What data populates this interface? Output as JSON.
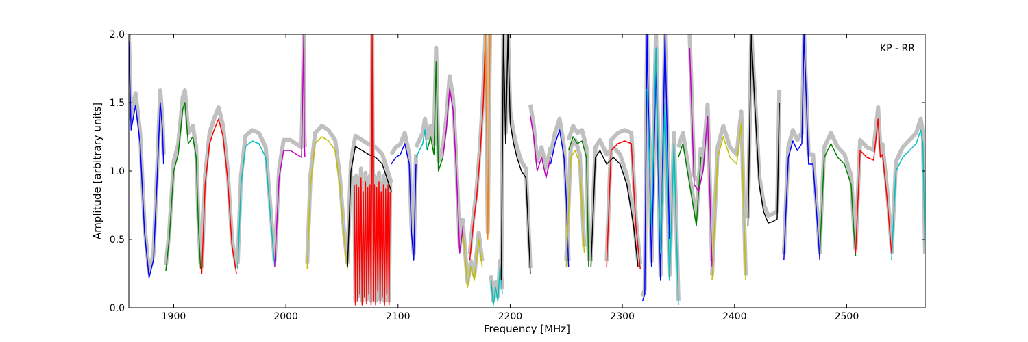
{
  "chart_data": {
    "type": "line",
    "title": "",
    "xlabel": "Frequency [MHz]",
    "ylabel": "Amplitude [arbitrary units]",
    "annotation": "KP - RR",
    "xlim": [
      1860,
      2570
    ],
    "ylim": [
      0.0,
      2.0
    ],
    "x_ticks": [
      1900,
      2000,
      2100,
      2200,
      2300,
      2400,
      2500
    ],
    "y_ticks": [
      0.0,
      0.5,
      1.0,
      1.5,
      2.0
    ],
    "x_tick_labels": [
      "1900",
      "2000",
      "2100",
      "2200",
      "2300",
      "2400",
      "2500"
    ],
    "y_tick_labels": [
      "0.0",
      "0.5",
      "1.0",
      "1.5",
      "2.0"
    ],
    "grid": false,
    "background_color": "#c0c0c0",
    "series": [
      {
        "color": "#0000ff",
        "x": [
          1860,
          1862,
          1866,
          1870,
          1874,
          1878,
          1882,
          1885,
          1888,
          1890,
          1891
        ],
        "y": [
          1.95,
          1.3,
          1.48,
          1.2,
          0.55,
          0.22,
          0.35,
          0.9,
          1.5,
          1.3,
          1.05
        ]
      },
      {
        "color": "#008000",
        "x": [
          1893,
          1896,
          1900,
          1904,
          1908,
          1910,
          1913,
          1917,
          1920,
          1922,
          1924
        ],
        "y": [
          0.27,
          0.5,
          1.0,
          1.12,
          1.45,
          1.5,
          1.2,
          1.25,
          1.1,
          0.6,
          0.28
        ]
      },
      {
        "color": "#ff0000",
        "x": [
          1925,
          1928,
          1932,
          1936,
          1940,
          1944,
          1948,
          1952,
          1956
        ],
        "y": [
          0.25,
          0.9,
          1.2,
          1.3,
          1.38,
          1.25,
          0.95,
          0.45,
          0.25
        ]
      },
      {
        "color": "#00bfbf",
        "x": [
          1957,
          1960,
          1964,
          1970,
          1976,
          1982,
          1986,
          1990
        ],
        "y": [
          0.28,
          0.9,
          1.18,
          1.22,
          1.2,
          1.1,
          0.7,
          0.3
        ]
      },
      {
        "color": "#bf00bf",
        "x": [
          1990,
          1994,
          1998,
          2004,
          2010,
          2014,
          2016,
          2016.5,
          2017
        ],
        "y": [
          0.3,
          0.95,
          1.15,
          1.15,
          1.12,
          1.1,
          2.0,
          1.2,
          1.1
        ]
      },
      {
        "color": "#bfbf00",
        "x": [
          2019,
          2022,
          2026,
          2032,
          2038,
          2044,
          2048,
          2052,
          2055
        ],
        "y": [
          0.28,
          0.9,
          1.2,
          1.25,
          1.22,
          1.15,
          0.9,
          0.5,
          0.28
        ]
      },
      {
        "color": "#000000",
        "x": [
          2055,
          2058,
          2062,
          2068,
          2074,
          2080,
          2086,
          2090,
          2094
        ],
        "y": [
          0.3,
          1.0,
          1.18,
          1.15,
          1.12,
          1.1,
          1.05,
          0.95,
          0.85
        ]
      },
      {
        "color": "#ff0000",
        "x": [
          2061,
          2062,
          2063,
          2064,
          2065,
          2066,
          2067,
          2068,
          2069,
          2070,
          2071,
          2072,
          2073,
          2074,
          2075,
          2076,
          2077,
          2078,
          2079,
          2080,
          2081,
          2082,
          2083,
          2084,
          2085,
          2086,
          2087,
          2088,
          2089,
          2090,
          2091,
          2092,
          2093
        ],
        "y": [
          0.9,
          0.02,
          0.9,
          0.05,
          0.88,
          0.1,
          0.95,
          0.02,
          0.85,
          0.08,
          0.92,
          0.03,
          0.88,
          0.1,
          0.9,
          0.02,
          2.0,
          0.05,
          0.9,
          0.02,
          0.88,
          0.12,
          0.92,
          0.03,
          0.85,
          0.08,
          0.9,
          0.02,
          0.87,
          0.1,
          0.9,
          0.02,
          0.85
        ]
      },
      {
        "color": "#0000ff",
        "x": [
          2094,
          2098,
          2102,
          2106,
          2110,
          2112,
          2114,
          2116
        ],
        "y": [
          1.05,
          1.1,
          1.12,
          1.2,
          1.05,
          0.55,
          0.35,
          1.05
        ]
      },
      {
        "color": "#00bfbf",
        "x": [
          2116,
          2119,
          2122,
          2124,
          2126
        ],
        "y": [
          1.1,
          1.15,
          1.2,
          1.3,
          1.15
        ]
      },
      {
        "color": "#008000",
        "x": [
          2126,
          2129,
          2132,
          2134,
          2136,
          2138,
          2140
        ],
        "y": [
          1.15,
          1.25,
          1.12,
          1.8,
          1.0,
          1.05,
          1.1
        ]
      },
      {
        "color": "#bf00bf",
        "x": [
          2140,
          2143,
          2146,
          2149,
          2152,
          2155,
          2158
        ],
        "y": [
          1.1,
          1.3,
          1.6,
          1.45,
          1.0,
          0.4,
          0.6
        ]
      },
      {
        "color": "#bfbf00",
        "x": [
          2158,
          2162,
          2165,
          2168,
          2172,
          2175
        ],
        "y": [
          0.55,
          0.15,
          0.3,
          0.2,
          0.5,
          0.3
        ]
      },
      {
        "color": "#ff0000",
        "x": [
          2164,
          2167,
          2170,
          2173,
          2176,
          2178
        ],
        "y": [
          0.35,
          0.6,
          0.8,
          1.1,
          1.5,
          2.0
        ]
      },
      {
        "color": "#ff8000",
        "x": [
          2178,
          2180,
          2182
        ],
        "y": [
          2.0,
          0.5,
          2.0
        ]
      },
      {
        "color": "#00bfbf",
        "x": [
          2183,
          2185,
          2187,
          2189,
          2191,
          2193
        ],
        "y": [
          0.2,
          0.02,
          0.15,
          0.05,
          0.3,
          0.1
        ]
      },
      {
        "color": "#000000",
        "x": [
          2192,
          2194,
          2196,
          2198,
          2200,
          2203,
          2206,
          2210,
          2214,
          2218
        ],
        "y": [
          0.2,
          2.0,
          1.2,
          2.0,
          1.35,
          1.2,
          1.1,
          1.0,
          0.95,
          0.25
        ]
      },
      {
        "color": "#bf00bf",
        "x": [
          2218,
          2221,
          2224,
          2228,
          2232,
          2236
        ],
        "y": [
          1.4,
          1.25,
          1.0,
          1.1,
          0.95,
          1.1
        ]
      },
      {
        "color": "#0000ff",
        "x": [
          2236,
          2240,
          2244,
          2248,
          2250,
          2252
        ],
        "y": [
          1.05,
          1.2,
          1.3,
          1.1,
          0.8,
          0.3
        ]
      },
      {
        "color": "#008000",
        "x": [
          2252,
          2256,
          2260,
          2264,
          2268,
          2270
        ],
        "y": [
          1.15,
          1.25,
          1.2,
          1.22,
          1.1,
          0.3
        ]
      },
      {
        "color": "#bfbf00",
        "x": [
          2250,
          2254,
          2258,
          2262,
          2266
        ],
        "y": [
          0.3,
          1.1,
          1.15,
          1.05,
          0.4
        ]
      },
      {
        "color": "#000000",
        "x": [
          2272,
          2276,
          2280,
          2286,
          2292,
          2298,
          2304,
          2310,
          2314
        ],
        "y": [
          0.3,
          1.1,
          1.15,
          1.05,
          1.1,
          1.05,
          0.9,
          0.6,
          0.3
        ]
      },
      {
        "color": "#ff0000",
        "x": [
          2286,
          2290,
          2296,
          2302,
          2308,
          2312,
          2316
        ],
        "y": [
          0.3,
          1.15,
          1.2,
          1.22,
          1.2,
          0.6,
          0.28
        ]
      },
      {
        "color": "#0000ff",
        "x": [
          2318,
          2320,
          2322,
          2326,
          2330,
          2334,
          2338,
          2342
        ],
        "y": [
          0.05,
          0.1,
          2.0,
          0.3,
          1.8,
          0.2,
          2.0,
          0.5
        ]
      },
      {
        "color": "#00bfbf",
        "x": [
          2322,
          2326,
          2330,
          2334,
          2338,
          2342,
          2346,
          2350
        ],
        "y": [
          1.6,
          0.6,
          1.9,
          0.4,
          1.5,
          0.2,
          1.2,
          0.02
        ]
      },
      {
        "color": "#008000",
        "x": [
          2350,
          2354,
          2358,
          2362,
          2366,
          2370
        ],
        "y": [
          1.1,
          1.2,
          1.0,
          0.8,
          0.6,
          1.1
        ]
      },
      {
        "color": "#bf00bf",
        "x": [
          2360,
          2364,
          2368,
          2372,
          2376,
          2380
        ],
        "y": [
          1.9,
          0.9,
          0.85,
          1.0,
          1.4,
          0.3
        ]
      },
      {
        "color": "#bfbf00",
        "x": [
          2380,
          2385,
          2390,
          2396,
          2402,
          2406,
          2410
        ],
        "y": [
          0.2,
          1.1,
          1.25,
          1.1,
          1.05,
          1.35,
          0.2
        ]
      },
      {
        "color": "#000000",
        "x": [
          2412,
          2415,
          2418,
          2422,
          2426,
          2430,
          2434,
          2438,
          2440
        ],
        "y": [
          0.6,
          2.0,
          1.5,
          0.9,
          0.7,
          0.62,
          0.63,
          0.65,
          1.5
        ]
      },
      {
        "color": "#0000ff",
        "x": [
          2444,
          2448,
          2452,
          2456,
          2460,
          2462,
          2466,
          2470,
          2474,
          2476
        ],
        "y": [
          0.35,
          1.1,
          1.22,
          1.15,
          1.2,
          2.0,
          1.05,
          1.05,
          0.6,
          0.35
        ]
      },
      {
        "color": "#008000",
        "x": [
          2476,
          2480,
          2486,
          2492,
          2498,
          2504,
          2506,
          2508
        ],
        "y": [
          0.4,
          1.1,
          1.2,
          1.1,
          1.05,
          0.9,
          0.6,
          0.38
        ]
      },
      {
        "color": "#ff0000",
        "x": [
          2508,
          2512,
          2518,
          2524,
          2528,
          2530,
          2532,
          2536,
          2540
        ],
        "y": [
          0.4,
          1.15,
          1.1,
          1.08,
          1.38,
          1.1,
          1.12,
          0.8,
          0.4
        ]
      },
      {
        "color": "#00bfbf",
        "x": [
          2540,
          2544,
          2550,
          2556,
          2562,
          2566,
          2568,
          2570
        ],
        "y": [
          0.35,
          1.0,
          1.1,
          1.15,
          1.2,
          1.3,
          1.2,
          0.35
        ]
      }
    ]
  }
}
